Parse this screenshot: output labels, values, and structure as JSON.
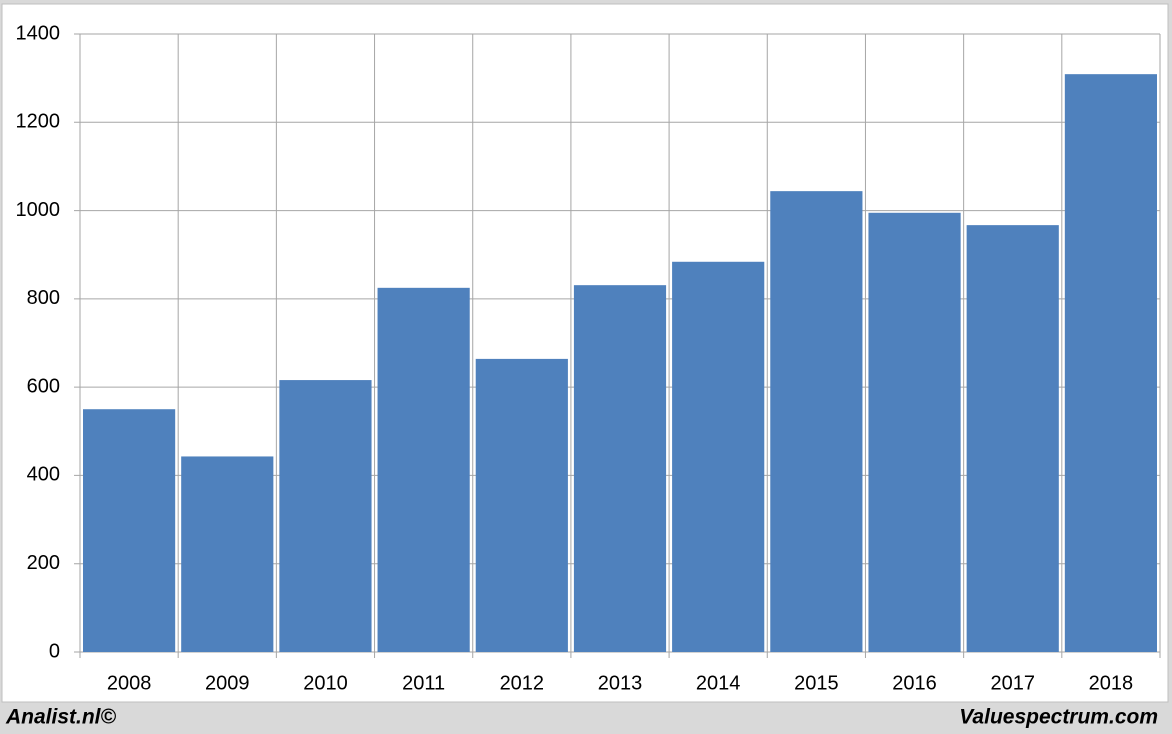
{
  "chart_data": {
    "type": "bar",
    "categories": [
      "2008",
      "2009",
      "2010",
      "2011",
      "2012",
      "2013",
      "2014",
      "2015",
      "2016",
      "2017",
      "2018"
    ],
    "values": [
      550,
      443,
      616,
      825,
      664,
      831,
      884,
      1044,
      995,
      967,
      1309
    ],
    "color": "#4f81bd",
    "ylim": [
      0,
      1400
    ],
    "yticks": [
      0,
      200,
      400,
      600,
      800,
      1000,
      1200,
      1400
    ],
    "grid": true,
    "annotations": [
      "Analist.nl©",
      "Valuespectrum.com"
    ]
  }
}
